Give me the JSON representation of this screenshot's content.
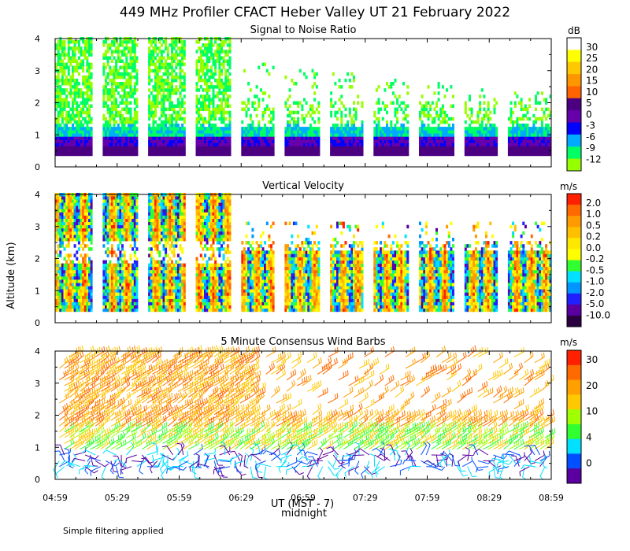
{
  "chart_data": {
    "title": "449 MHz Profiler CFACT Heber Valley UT 21 February 2022",
    "xlabel_line1": "UT (MST - 7)",
    "xlabel_line2": "midnight",
    "ylabel": "Altitude (km)",
    "note": "Simple filtering applied",
    "x_ticks": [
      "04:59",
      "05:29",
      "05:59",
      "06:29",
      "06:59",
      "07:29",
      "07:59",
      "08:29",
      "08:59"
    ],
    "x_range_minutes": [
      299,
      539
    ],
    "y_ticks": [
      "0",
      "1",
      "2",
      "3",
      "4"
    ],
    "ylim": [
      0,
      4
    ],
    "gap_minutes": [
      [
        317,
        322
      ],
      [
        339,
        344
      ],
      [
        362,
        367
      ],
      [
        384,
        389
      ],
      [
        405,
        410
      ],
      [
        427,
        432
      ],
      [
        448,
        453
      ],
      [
        470,
        475
      ],
      [
        492,
        497
      ],
      [
        513,
        518
      ]
    ],
    "panels": [
      {
        "type": "heatmap",
        "title": "Signal to Noise Ratio",
        "unit": "dB",
        "colorbar_labels": [
          "30",
          "25",
          "20",
          "15",
          "10",
          "5",
          "0",
          "-3",
          "-6",
          "-9",
          "-12"
        ],
        "colorbar_colors": [
          "#ffffff",
          "#ffff00",
          "#ffc800",
          "#ff9600",
          "#ff6400",
          "#4b0082",
          "#6600aa",
          "#0000ff",
          "#00aaff",
          "#00ff64",
          "#96ff00"
        ]
      },
      {
        "type": "heatmap",
        "title": "Vertical Velocity",
        "unit": "m/s",
        "colorbar_labels": [
          "2.0",
          "1.0",
          "0.5",
          "0.2",
          "0.0",
          "-0.2",
          "-0.5",
          "-1.0",
          "-2.0",
          "-5.0",
          "-10.0"
        ],
        "colorbar_colors": [
          "#ff2000",
          "#ff6a00",
          "#ff9a00",
          "#ffc000",
          "#ffe800",
          "#ffff00",
          "#30ff30",
          "#00e0ff",
          "#0096ff",
          "#2020ff",
          "#5a00a0",
          "#2a0040"
        ]
      },
      {
        "type": "wind-barbs",
        "title": "5 Minute Consensus Wind Barbs",
        "unit": "m/s",
        "colorbar_labels": [
          "30",
          "20",
          "10",
          "4",
          "0"
        ],
        "colorbar_colors": [
          "#ff2000",
          "#ff6a00",
          "#ffa000",
          "#ffc800",
          "#a0ff00",
          "#30ff30",
          "#00e0ff",
          "#0050ff",
          "#5a00a0"
        ]
      }
    ]
  }
}
